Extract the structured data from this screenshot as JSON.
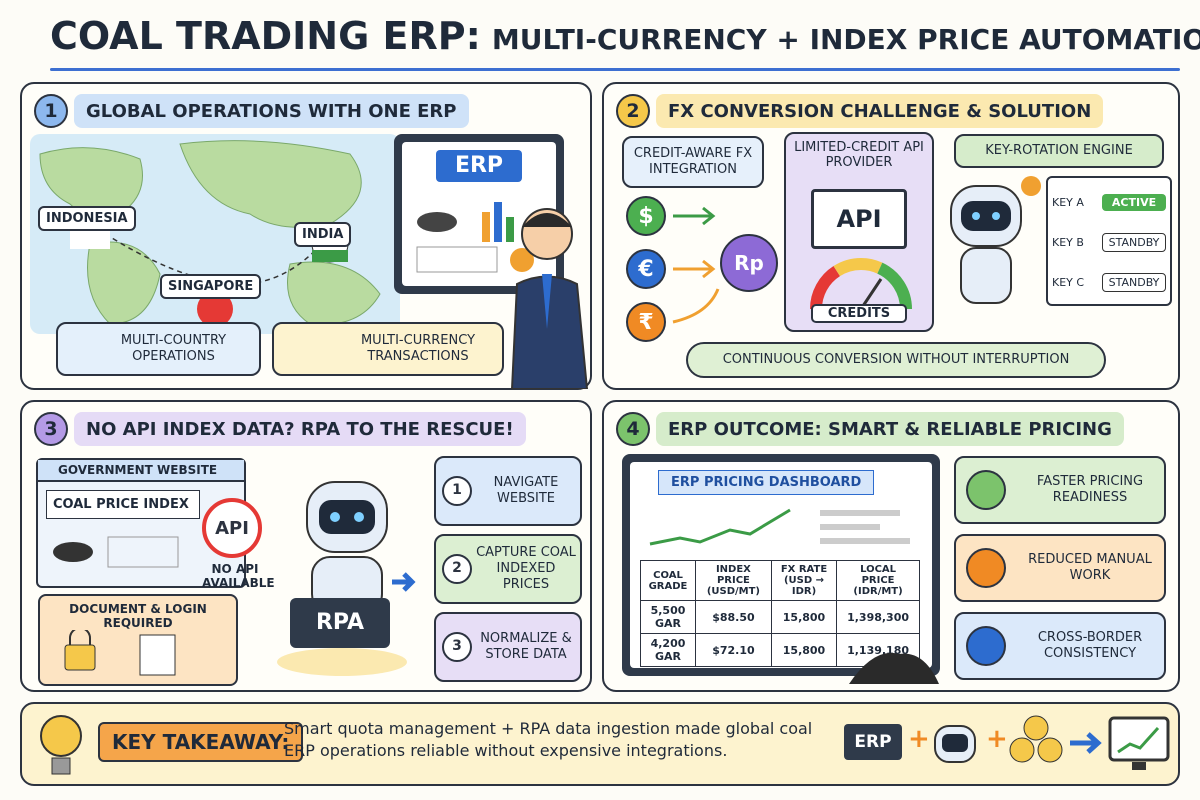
{
  "header": {
    "title": "COAL TRADING ERP:",
    "subtitle": "MULTI-CURRENCY + INDEX PRICE AUTOMATION"
  },
  "panels": [
    {
      "number": "1",
      "title": "GLOBAL OPERATIONS WITH ONE ERP",
      "countries": [
        "INDONESIA",
        "SINGAPORE",
        "INDIA"
      ],
      "screen": "ERP",
      "badges": [
        "MULTI-COUNTRY OPERATIONS",
        "MULTI-CURRENCY TRANSACTIONS"
      ]
    },
    {
      "number": "2",
      "title": "FX CONVERSION CHALLENGE & SOLUTION",
      "integration": "CREDIT-AWARE FX INTEGRATION",
      "currencies": [
        "$",
        "€",
        "₹"
      ],
      "target": "Rp",
      "provider": "LIMITED-CREDIT API PROVIDER",
      "api": "API",
      "credits": "CREDITS",
      "engine": "KEY-ROTATION ENGINE",
      "keys": [
        {
          "key": "KEY A",
          "status": "ACTIVE"
        },
        {
          "key": "KEY B",
          "status": "STANDBY"
        },
        {
          "key": "KEY C",
          "status": "STANDBY"
        }
      ],
      "footer": "CONTINUOUS CONVERSION WITHOUT INTERRUPTION"
    },
    {
      "number": "3",
      "title": "NO API INDEX DATA? RPA TO THE RESCUE!",
      "website": "GOVERNMENT WEBSITE",
      "index": "COAL PRICE INDEX",
      "api": "API",
      "no_api": "NO API AVAILABLE",
      "login": "DOCUMENT & LOGIN REQUIRED",
      "rpa": "RPA",
      "steps": [
        {
          "number": "1",
          "text": "NAVIGATE WEBSITE"
        },
        {
          "number": "2",
          "text": "CAPTURE COAL INDEXED PRICES"
        },
        {
          "number": "3",
          "text": "NORMALIZE & STORE DATA"
        }
      ]
    },
    {
      "number": "4",
      "title": "ERP OUTCOME: SMART & RELIABLE PRICING",
      "dashboard": "ERP PRICING DASHBOARD",
      "table": {
        "headers": [
          "COAL GRADE",
          "INDEX PRICE (USD/MT)",
          "FX RATE (USD → IDR)",
          "LOCAL PRICE (IDR/MT)"
        ],
        "rows": [
          [
            "5,500 GAR",
            "$88.50",
            "15,800",
            "1,398,300"
          ],
          [
            "4,200 GAR",
            "$72.10",
            "15,800",
            "1,139,180"
          ]
        ]
      },
      "outcomes": [
        "FASTER PRICING READINESS",
        "REDUCED MANUAL WORK",
        "CROSS-BORDER CONSISTENCY"
      ]
    }
  ],
  "footer": {
    "label": "KEY TAKEAWAY:",
    "text": "Smart quota management + RPA data ingestion made global coal ERP operations reliable without expensive integrations.",
    "erp": "ERP",
    "plus": "+"
  }
}
